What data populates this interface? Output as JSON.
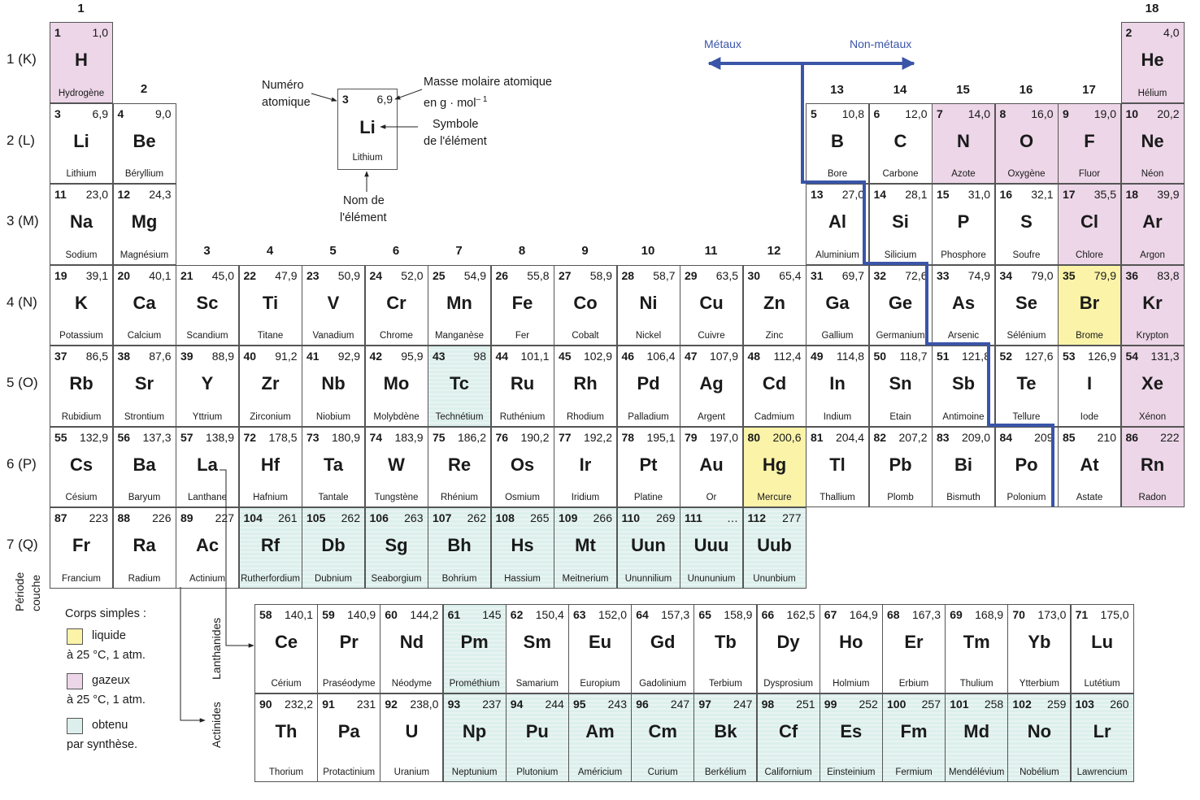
{
  "groups": [
    "1",
    "2",
    "3",
    "4",
    "5",
    "6",
    "7",
    "8",
    "9",
    "10",
    "11",
    "12",
    "13",
    "14",
    "15",
    "16",
    "17",
    "18"
  ],
  "periods": [
    "1 (K)",
    "2 (L)",
    "3 (M)",
    "4 (N)",
    "5 (O)",
    "6 (P)",
    "7 (Q)"
  ],
  "period_axis": {
    "line1": "Période",
    "line2": "couche"
  },
  "key": {
    "numero_line1": "Numéro",
    "numero_line2": "atomique",
    "masse_line1": "Masse molaire atomique",
    "masse_line2": "en g · mol",
    "masse_exp": "– 1",
    "symbole_line1": "Symbole",
    "symbole_line2": "de l'élément",
    "nom_line1": "Nom de",
    "nom_line2": "l'élément",
    "example": {
      "num": "3",
      "mass": "6,9",
      "sym": "Li",
      "name": "Lithium"
    }
  },
  "metal_line": {
    "metaux": "Métaux",
    "non_metaux": "Non-métaux",
    "color": "#3a55a8"
  },
  "series_labels": {
    "lanthanides": "Lanthanides",
    "actinides": "Actinides"
  },
  "legend": {
    "title": "Corps simples :",
    "items": [
      {
        "label": "liquide",
        "sub": "à 25 °C, 1 atm.",
        "color": "#fbf3a8"
      },
      {
        "label": "gazeux",
        "sub": "à 25 °C, 1 atm.",
        "color": "#ecd6e8"
      },
      {
        "label": "obtenu",
        "sub": "par synthèse.",
        "color": "#dcefec"
      }
    ]
  },
  "elements": [
    {
      "n": "1",
      "m": "1,0",
      "s": "H",
      "name": "Hydrogène",
      "p": 1,
      "g": 1,
      "st": "gas"
    },
    {
      "n": "2",
      "m": "4,0",
      "s": "He",
      "name": "Hélium",
      "p": 1,
      "g": 18,
      "st": "gas"
    },
    {
      "n": "3",
      "m": "6,9",
      "s": "Li",
      "name": "Lithium",
      "p": 2,
      "g": 1
    },
    {
      "n": "4",
      "m": "9,0",
      "s": "Be",
      "name": "Béryllium",
      "p": 2,
      "g": 2
    },
    {
      "n": "5",
      "m": "10,8",
      "s": "B",
      "name": "Bore",
      "p": 2,
      "g": 13
    },
    {
      "n": "6",
      "m": "12,0",
      "s": "C",
      "name": "Carbone",
      "p": 2,
      "g": 14
    },
    {
      "n": "7",
      "m": "14,0",
      "s": "N",
      "name": "Azote",
      "p": 2,
      "g": 15,
      "st": "gas"
    },
    {
      "n": "8",
      "m": "16,0",
      "s": "O",
      "name": "Oxygène",
      "p": 2,
      "g": 16,
      "st": "gas"
    },
    {
      "n": "9",
      "m": "19,0",
      "s": "F",
      "name": "Fluor",
      "p": 2,
      "g": 17,
      "st": "gas"
    },
    {
      "n": "10",
      "m": "20,2",
      "s": "Ne",
      "name": "Néon",
      "p": 2,
      "g": 18,
      "st": "gas"
    },
    {
      "n": "11",
      "m": "23,0",
      "s": "Na",
      "name": "Sodium",
      "p": 3,
      "g": 1
    },
    {
      "n": "12",
      "m": "24,3",
      "s": "Mg",
      "name": "Magnésium",
      "p": 3,
      "g": 2
    },
    {
      "n": "13",
      "m": "27,0",
      "s": "Al",
      "name": "Aluminium",
      "p": 3,
      "g": 13
    },
    {
      "n": "14",
      "m": "28,1",
      "s": "Si",
      "name": "Silicium",
      "p": 3,
      "g": 14
    },
    {
      "n": "15",
      "m": "31,0",
      "s": "P",
      "name": "Phosphore",
      "p": 3,
      "g": 15
    },
    {
      "n": "16",
      "m": "32,1",
      "s": "S",
      "name": "Soufre",
      "p": 3,
      "g": 16
    },
    {
      "n": "17",
      "m": "35,5",
      "s": "Cl",
      "name": "Chlore",
      "p": 3,
      "g": 17,
      "st": "gas"
    },
    {
      "n": "18",
      "m": "39,9",
      "s": "Ar",
      "name": "Argon",
      "p": 3,
      "g": 18,
      "st": "gas"
    },
    {
      "n": "19",
      "m": "39,1",
      "s": "K",
      "name": "Potassium",
      "p": 4,
      "g": 1
    },
    {
      "n": "20",
      "m": "40,1",
      "s": "Ca",
      "name": "Calcium",
      "p": 4,
      "g": 2
    },
    {
      "n": "21",
      "m": "45,0",
      "s": "Sc",
      "name": "Scandium",
      "p": 4,
      "g": 3
    },
    {
      "n": "22",
      "m": "47,9",
      "s": "Ti",
      "name": "Titane",
      "p": 4,
      "g": 4
    },
    {
      "n": "23",
      "m": "50,9",
      "s": "V",
      "name": "Vanadium",
      "p": 4,
      "g": 5
    },
    {
      "n": "24",
      "m": "52,0",
      "s": "Cr",
      "name": "Chrome",
      "p": 4,
      "g": 6
    },
    {
      "n": "25",
      "m": "54,9",
      "s": "Mn",
      "name": "Manganèse",
      "p": 4,
      "g": 7
    },
    {
      "n": "26",
      "m": "55,8",
      "s": "Fe",
      "name": "Fer",
      "p": 4,
      "g": 8
    },
    {
      "n": "27",
      "m": "58,9",
      "s": "Co",
      "name": "Cobalt",
      "p": 4,
      "g": 9
    },
    {
      "n": "28",
      "m": "58,7",
      "s": "Ni",
      "name": "Nickel",
      "p": 4,
      "g": 10
    },
    {
      "n": "29",
      "m": "63,5",
      "s": "Cu",
      "name": "Cuivre",
      "p": 4,
      "g": 11
    },
    {
      "n": "30",
      "m": "65,4",
      "s": "Zn",
      "name": "Zinc",
      "p": 4,
      "g": 12
    },
    {
      "n": "31",
      "m": "69,7",
      "s": "Ga",
      "name": "Gallium",
      "p": 4,
      "g": 13
    },
    {
      "n": "32",
      "m": "72,6",
      "s": "Ge",
      "name": "Germanium",
      "p": 4,
      "g": 14
    },
    {
      "n": "33",
      "m": "74,9",
      "s": "As",
      "name": "Arsenic",
      "p": 4,
      "g": 15
    },
    {
      "n": "34",
      "m": "79,0",
      "s": "Se",
      "name": "Sélénium",
      "p": 4,
      "g": 16
    },
    {
      "n": "35",
      "m": "79,9",
      "s": "Br",
      "name": "Brome",
      "p": 4,
      "g": 17,
      "st": "liquid"
    },
    {
      "n": "36",
      "m": "83,8",
      "s": "Kr",
      "name": "Krypton",
      "p": 4,
      "g": 18,
      "st": "gas"
    },
    {
      "n": "37",
      "m": "86,5",
      "s": "Rb",
      "name": "Rubidium",
      "p": 5,
      "g": 1
    },
    {
      "n": "38",
      "m": "87,6",
      "s": "Sr",
      "name": "Strontium",
      "p": 5,
      "g": 2
    },
    {
      "n": "39",
      "m": "88,9",
      "s": "Y",
      "name": "Yttrium",
      "p": 5,
      "g": 3
    },
    {
      "n": "40",
      "m": "91,2",
      "s": "Zr",
      "name": "Zirconium",
      "p": 5,
      "g": 4
    },
    {
      "n": "41",
      "m": "92,9",
      "s": "Nb",
      "name": "Niobium",
      "p": 5,
      "g": 5
    },
    {
      "n": "42",
      "m": "95,9",
      "s": "Mo",
      "name": "Molybdène",
      "p": 5,
      "g": 6
    },
    {
      "n": "43",
      "m": "98",
      "s": "Tc",
      "name": "Technétium",
      "p": 5,
      "g": 7,
      "st": "synth"
    },
    {
      "n": "44",
      "m": "101,1",
      "s": "Ru",
      "name": "Ruthénium",
      "p": 5,
      "g": 8
    },
    {
      "n": "45",
      "m": "102,9",
      "s": "Rh",
      "name": "Rhodium",
      "p": 5,
      "g": 9
    },
    {
      "n": "46",
      "m": "106,4",
      "s": "Pd",
      "name": "Palladium",
      "p": 5,
      "g": 10
    },
    {
      "n": "47",
      "m": "107,9",
      "s": "Ag",
      "name": "Argent",
      "p": 5,
      "g": 11
    },
    {
      "n": "48",
      "m": "112,4",
      "s": "Cd",
      "name": "Cadmium",
      "p": 5,
      "g": 12
    },
    {
      "n": "49",
      "m": "114,8",
      "s": "In",
      "name": "Indium",
      "p": 5,
      "g": 13
    },
    {
      "n": "50",
      "m": "118,7",
      "s": "Sn",
      "name": "Étain",
      "p": 5,
      "g": 14
    },
    {
      "n": "51",
      "m": "121,8",
      "s": "Sb",
      "name": "Antimoine",
      "p": 5,
      "g": 15
    },
    {
      "n": "52",
      "m": "127,6",
      "s": "Te",
      "name": "Tellure",
      "p": 5,
      "g": 16
    },
    {
      "n": "53",
      "m": "126,9",
      "s": "I",
      "name": "Iode",
      "p": 5,
      "g": 17
    },
    {
      "n": "54",
      "m": "131,3",
      "s": "Xe",
      "name": "Xénon",
      "p": 5,
      "g": 18,
      "st": "gas"
    },
    {
      "n": "55",
      "m": "132,9",
      "s": "Cs",
      "name": "Césium",
      "p": 6,
      "g": 1
    },
    {
      "n": "56",
      "m": "137,3",
      "s": "Ba",
      "name": "Baryum",
      "p": 6,
      "g": 2
    },
    {
      "n": "57",
      "m": "138,9",
      "s": "La",
      "name": "Lanthane",
      "p": 6,
      "g": 3
    },
    {
      "n": "72",
      "m": "178,5",
      "s": "Hf",
      "name": "Hafnium",
      "p": 6,
      "g": 4
    },
    {
      "n": "73",
      "m": "180,9",
      "s": "Ta",
      "name": "Tantale",
      "p": 6,
      "g": 5
    },
    {
      "n": "74",
      "m": "183,9",
      "s": "W",
      "name": "Tungstène",
      "p": 6,
      "g": 6
    },
    {
      "n": "75",
      "m": "186,2",
      "s": "Re",
      "name": "Rhénium",
      "p": 6,
      "g": 7
    },
    {
      "n": "76",
      "m": "190,2",
      "s": "Os",
      "name": "Osmium",
      "p": 6,
      "g": 8
    },
    {
      "n": "77",
      "m": "192,2",
      "s": "Ir",
      "name": "Iridium",
      "p": 6,
      "g": 9
    },
    {
      "n": "78",
      "m": "195,1",
      "s": "Pt",
      "name": "Platine",
      "p": 6,
      "g": 10
    },
    {
      "n": "79",
      "m": "197,0",
      "s": "Au",
      "name": "Or",
      "p": 6,
      "g": 11
    },
    {
      "n": "80",
      "m": "200,6",
      "s": "Hg",
      "name": "Mercure",
      "p": 6,
      "g": 12,
      "st": "liquid"
    },
    {
      "n": "81",
      "m": "204,4",
      "s": "Tl",
      "name": "Thallium",
      "p": 6,
      "g": 13
    },
    {
      "n": "82",
      "m": "207,2",
      "s": "Pb",
      "name": "Plomb",
      "p": 6,
      "g": 14
    },
    {
      "n": "83",
      "m": "209,0",
      "s": "Bi",
      "name": "Bismuth",
      "p": 6,
      "g": 15
    },
    {
      "n": "84",
      "m": "209",
      "s": "Po",
      "name": "Polonium",
      "p": 6,
      "g": 16
    },
    {
      "n": "85",
      "m": "210",
      "s": "At",
      "name": "Astate",
      "p": 6,
      "g": 17
    },
    {
      "n": "86",
      "m": "222",
      "s": "Rn",
      "name": "Radon",
      "p": 6,
      "g": 18,
      "st": "gas"
    },
    {
      "n": "87",
      "m": "223",
      "s": "Fr",
      "name": "Francium",
      "p": 7,
      "g": 1
    },
    {
      "n": "88",
      "m": "226",
      "s": "Ra",
      "name": "Radium",
      "p": 7,
      "g": 2
    },
    {
      "n": "89",
      "m": "227",
      "s": "Ac",
      "name": "Actinium",
      "p": 7,
      "g": 3
    },
    {
      "n": "104",
      "m": "261",
      "s": "Rf",
      "name": "Rutherfordium",
      "p": 7,
      "g": 4,
      "st": "synth"
    },
    {
      "n": "105",
      "m": "262",
      "s": "Db",
      "name": "Dubnium",
      "p": 7,
      "g": 5,
      "st": "synth"
    },
    {
      "n": "106",
      "m": "263",
      "s": "Sg",
      "name": "Seaborgium",
      "p": 7,
      "g": 6,
      "st": "synth"
    },
    {
      "n": "107",
      "m": "262",
      "s": "Bh",
      "name": "Bohrium",
      "p": 7,
      "g": 7,
      "st": "synth"
    },
    {
      "n": "108",
      "m": "265",
      "s": "Hs",
      "name": "Hassium",
      "p": 7,
      "g": 8,
      "st": "synth"
    },
    {
      "n": "109",
      "m": "266",
      "s": "Mt",
      "name": "Meitnerium",
      "p": 7,
      "g": 9,
      "st": "synth"
    },
    {
      "n": "110",
      "m": "269",
      "s": "Uun",
      "name": "Ununnilium",
      "p": 7,
      "g": 10,
      "st": "synth"
    },
    {
      "n": "111",
      "m": "…",
      "s": "Uuu",
      "name": "Unununium",
      "p": 7,
      "g": 11,
      "st": "synth"
    },
    {
      "n": "112",
      "m": "277",
      "s": "Uub",
      "name": "Ununbium",
      "p": 7,
      "g": 12,
      "st": "synth"
    }
  ],
  "lanthanides": [
    {
      "n": "58",
      "m": "140,1",
      "s": "Ce",
      "name": "Cérium"
    },
    {
      "n": "59",
      "m": "140,9",
      "s": "Pr",
      "name": "Praséodyme"
    },
    {
      "n": "60",
      "m": "144,2",
      "s": "Nd",
      "name": "Néodyme"
    },
    {
      "n": "61",
      "m": "145",
      "s": "Pm",
      "name": "Prométhium",
      "st": "synth"
    },
    {
      "n": "62",
      "m": "150,4",
      "s": "Sm",
      "name": "Samarium"
    },
    {
      "n": "63",
      "m": "152,0",
      "s": "Eu",
      "name": "Europium"
    },
    {
      "n": "64",
      "m": "157,3",
      "s": "Gd",
      "name": "Gadolinium"
    },
    {
      "n": "65",
      "m": "158,9",
      "s": "Tb",
      "name": "Terbium"
    },
    {
      "n": "66",
      "m": "162,5",
      "s": "Dy",
      "name": "Dysprosium"
    },
    {
      "n": "67",
      "m": "164,9",
      "s": "Ho",
      "name": "Holmium"
    },
    {
      "n": "68",
      "m": "167,3",
      "s": "Er",
      "name": "Erbium"
    },
    {
      "n": "69",
      "m": "168,9",
      "s": "Tm",
      "name": "Thulium"
    },
    {
      "n": "70",
      "m": "173,0",
      "s": "Yb",
      "name": "Ytterbium"
    },
    {
      "n": "71",
      "m": "175,0",
      "s": "Lu",
      "name": "Lutétium"
    }
  ],
  "actinides": [
    {
      "n": "90",
      "m": "232,2",
      "s": "Th",
      "name": "Thorium"
    },
    {
      "n": "91",
      "m": "231",
      "s": "Pa",
      "name": "Protactinium"
    },
    {
      "n": "92",
      "m": "238,0",
      "s": "U",
      "name": "Uranium"
    },
    {
      "n": "93",
      "m": "237",
      "s": "Np",
      "name": "Neptunium",
      "st": "synth"
    },
    {
      "n": "94",
      "m": "244",
      "s": "Pu",
      "name": "Plutonium",
      "st": "synth"
    },
    {
      "n": "95",
      "m": "243",
      "s": "Am",
      "name": "Américium",
      "st": "synth"
    },
    {
      "n": "96",
      "m": "247",
      "s": "Cm",
      "name": "Curium",
      "st": "synth"
    },
    {
      "n": "97",
      "m": "247",
      "s": "Bk",
      "name": "Berkélium",
      "st": "synth"
    },
    {
      "n": "98",
      "m": "251",
      "s": "Cf",
      "name": "Californium",
      "st": "synth"
    },
    {
      "n": "99",
      "m": "252",
      "s": "Es",
      "name": "Einsteinium",
      "st": "synth"
    },
    {
      "n": "100",
      "m": "257",
      "s": "Fm",
      "name": "Fermium",
      "st": "synth"
    },
    {
      "n": "101",
      "m": "258",
      "s": "Md",
      "name": "Mendélévium",
      "st": "synth"
    },
    {
      "n": "102",
      "m": "259",
      "s": "No",
      "name": "Nobélium",
      "st": "synth"
    },
    {
      "n": "103",
      "m": "260",
      "s": "Lr",
      "name": "Lawrencium",
      "st": "synth"
    }
  ]
}
